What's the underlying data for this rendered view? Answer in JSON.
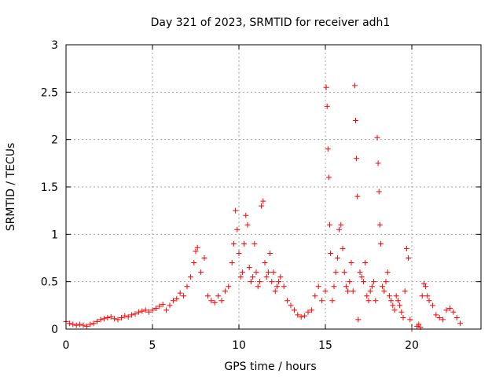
{
  "chart_data": {
    "type": "scatter",
    "title": "Day 321 of 2023, SRMTID for receiver adh1",
    "xlabel": "GPS time / hours",
    "ylabel": "SRMTID / TECUs",
    "xlim": [
      0,
      24
    ],
    "ylim": [
      0,
      3
    ],
    "xticks": [
      0,
      5,
      10,
      15,
      20
    ],
    "xtick_labels": [
      "0",
      "5",
      "10",
      "15",
      "20"
    ],
    "yticks": [
      0,
      0.5,
      1,
      1.5,
      2,
      2.5,
      3
    ],
    "ytick_labels": [
      "0",
      "0.5",
      "1",
      "1.5",
      "2",
      "2.5",
      "3"
    ],
    "grid": true,
    "marker": "+",
    "series": [
      {
        "name": "adh1",
        "color": "#ff0000",
        "x": [
          0.0,
          0.2,
          0.4,
          0.6,
          0.8,
          1.0,
          1.2,
          1.4,
          1.6,
          1.8,
          2.0,
          2.2,
          2.4,
          2.6,
          2.8,
          3.0,
          3.2,
          3.4,
          3.6,
          3.8,
          4.0,
          4.2,
          4.4,
          4.6,
          4.8,
          5.0,
          5.2,
          5.4,
          5.6,
          5.8,
          6.0,
          6.2,
          6.4,
          6.6,
          6.8,
          7.0,
          7.2,
          7.4,
          7.5,
          7.6,
          7.8,
          8.0,
          8.2,
          8.4,
          8.6,
          8.8,
          9.0,
          9.2,
          9.4,
          9.6,
          9.7,
          9.8,
          9.9,
          10.0,
          10.1,
          10.2,
          10.3,
          10.4,
          10.5,
          10.6,
          10.7,
          10.8,
          10.9,
          11.0,
          11.1,
          11.2,
          11.3,
          11.4,
          11.5,
          11.6,
          11.7,
          11.8,
          11.9,
          12.0,
          12.1,
          12.2,
          12.3,
          12.4,
          12.6,
          12.8,
          13.0,
          13.2,
          13.4,
          13.6,
          13.8,
          14.0,
          14.2,
          14.4,
          14.6,
          14.8,
          15.0,
          15.05,
          15.1,
          15.15,
          15.2,
          15.25,
          15.3,
          15.4,
          15.5,
          15.6,
          15.7,
          15.8,
          15.9,
          16.0,
          16.1,
          16.2,
          16.3,
          16.4,
          16.5,
          16.6,
          16.7,
          16.75,
          16.8,
          16.85,
          16.9,
          17.0,
          17.1,
          17.2,
          17.3,
          17.4,
          17.5,
          17.6,
          17.7,
          17.8,
          17.9,
          18.0,
          18.05,
          18.1,
          18.15,
          18.2,
          18.3,
          18.4,
          18.5,
          18.6,
          18.7,
          18.8,
          18.9,
          19.0,
          19.1,
          19.2,
          19.3,
          19.4,
          19.5,
          19.6,
          19.7,
          19.8,
          19.9,
          20.0,
          20.3,
          20.4,
          20.5,
          20.6,
          20.7,
          20.8,
          20.9,
          21.0,
          21.2,
          21.4,
          21.6,
          21.8,
          22.0,
          22.2,
          22.4,
          22.6,
          22.8
        ],
        "y": [
          0.08,
          0.06,
          0.05,
          0.04,
          0.05,
          0.04,
          0.03,
          0.05,
          0.06,
          0.08,
          0.1,
          0.11,
          0.12,
          0.13,
          0.11,
          0.1,
          0.12,
          0.14,
          0.13,
          0.15,
          0.16,
          0.18,
          0.19,
          0.2,
          0.18,
          0.2,
          0.22,
          0.24,
          0.26,
          0.2,
          0.25,
          0.3,
          0.32,
          0.38,
          0.35,
          0.45,
          0.55,
          0.7,
          0.82,
          0.86,
          0.6,
          0.75,
          0.35,
          0.3,
          0.28,
          0.35,
          0.3,
          0.4,
          0.45,
          0.7,
          0.9,
          1.25,
          1.05,
          0.8,
          0.55,
          0.6,
          0.9,
          1.2,
          1.1,
          0.65,
          0.5,
          0.55,
          0.9,
          0.6,
          0.45,
          0.5,
          1.3,
          1.35,
          0.7,
          0.55,
          0.6,
          0.8,
          0.5,
          0.6,
          0.4,
          0.45,
          0.5,
          0.55,
          0.45,
          0.3,
          0.25,
          0.2,
          0.15,
          0.13,
          0.14,
          0.18,
          0.2,
          0.35,
          0.45,
          0.3,
          0.4,
          2.55,
          2.35,
          1.9,
          1.6,
          1.1,
          0.8,
          0.3,
          0.45,
          0.6,
          0.75,
          1.05,
          1.1,
          0.85,
          0.6,
          0.45,
          0.4,
          0.5,
          0.7,
          0.4,
          2.57,
          2.2,
          1.8,
          1.4,
          0.1,
          0.6,
          0.55,
          0.5,
          0.7,
          0.35,
          0.3,
          0.4,
          0.45,
          0.5,
          0.3,
          2.02,
          1.75,
          1.45,
          1.1,
          0.9,
          0.45,
          0.4,
          0.5,
          0.6,
          0.35,
          0.3,
          0.25,
          0.2,
          0.35,
          0.3,
          0.25,
          0.18,
          0.12,
          0.4,
          0.85,
          0.75,
          0.1,
          0.0,
          0.03,
          0.05,
          0.02,
          0.35,
          0.48,
          0.45,
          0.35,
          0.3,
          0.25,
          0.15,
          0.12,
          0.1,
          0.2,
          0.22,
          0.18,
          0.12,
          0.06
        ]
      }
    ]
  }
}
